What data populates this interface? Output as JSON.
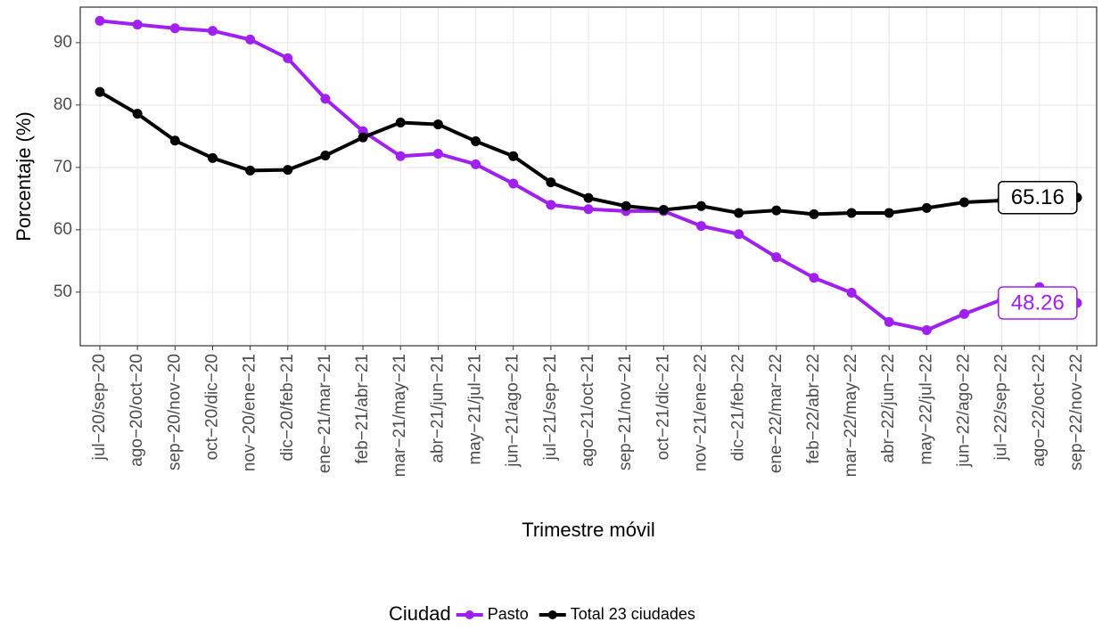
{
  "chart_data": {
    "type": "line",
    "x_label": "Trimestre móvil",
    "y_label": "Porcentaje (%)",
    "legend_title": "Ciudad",
    "legend_position": "bottom",
    "grid": true,
    "categories": [
      "jul−20/sep−20",
      "ago−20/oct−20",
      "sep−20/nov−20",
      "oct−20/dic−20",
      "nov−20/ene−21",
      "dic−20/feb−21",
      "ene−21/mar−21",
      "feb−21/abr−21",
      "mar−21/may−21",
      "abr−21/jun−21",
      "may−21/jul−21",
      "jun−21/ago−21",
      "jul−21/sep−21",
      "ago−21/oct−21",
      "sep−21/nov−21",
      "oct−21/dic−21",
      "nov−21/ene−22",
      "dic−21/feb−22",
      "ene−22/mar−22",
      "feb−22/abr−22",
      "mar−22/may−22",
      "abr−22/jun−22",
      "may−22/jul−22",
      "jun−22/ago−22",
      "jul−22/sep−22",
      "ago−22/oct−22",
      "sep−22/nov−22"
    ],
    "series": [
      {
        "name": "Pasto",
        "color": "#a020f0",
        "values": [
          93.5,
          92.9,
          92.3,
          91.9,
          90.5,
          87.5,
          81.0,
          75.8,
          71.8,
          72.2,
          70.5,
          67.4,
          64.0,
          63.3,
          63.0,
          63.0,
          60.6,
          59.3,
          55.6,
          52.3,
          49.9,
          45.2,
          43.9,
          46.5,
          48.8,
          50.8,
          48.26
        ]
      },
      {
        "name": "Total 23 ciudades",
        "color": "#000000",
        "values": [
          82.1,
          78.6,
          74.3,
          71.5,
          69.5,
          69.6,
          71.9,
          74.8,
          77.2,
          76.9,
          74.2,
          71.8,
          67.6,
          65.1,
          63.8,
          63.2,
          63.8,
          62.7,
          63.1,
          62.5,
          62.7,
          62.7,
          63.5,
          64.4,
          64.7,
          65.0,
          65.16
        ]
      }
    ],
    "ylim": [
      41.4,
      95.7
    ],
    "yticks": [
      50,
      60,
      70,
      80,
      90
    ]
  }
}
